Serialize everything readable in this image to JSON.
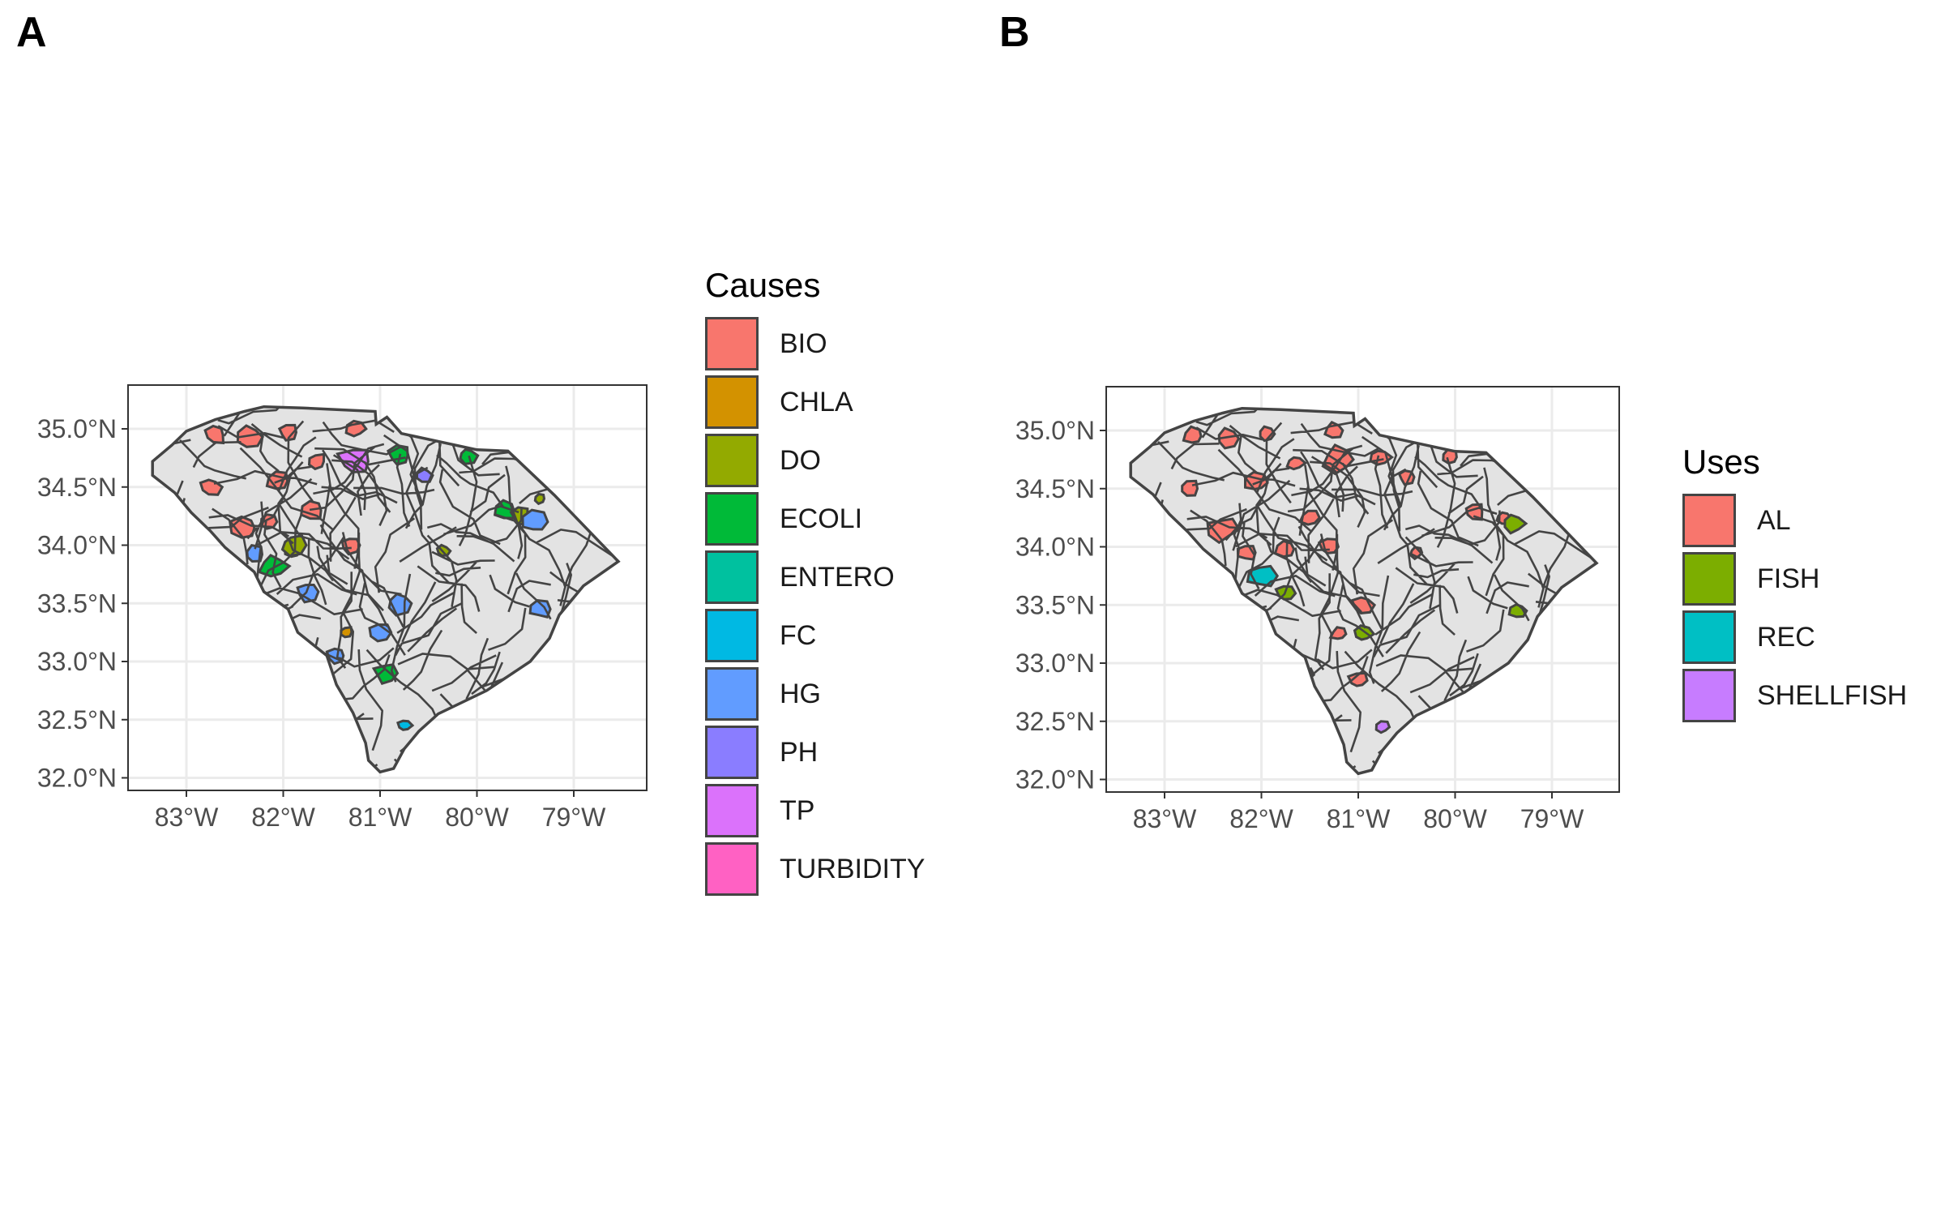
{
  "panels": [
    {
      "label": "A",
      "legend": {
        "title": "Causes",
        "items": [
          {
            "label": "BIO",
            "color": "#F8766D"
          },
          {
            "label": "CHLA",
            "color": "#D39200"
          },
          {
            "label": "DO",
            "color": "#93AA00"
          },
          {
            "label": "ECOLI",
            "color": "#00BA38"
          },
          {
            "label": "ENTERO",
            "color": "#00C19F"
          },
          {
            "label": "FC",
            "color": "#00B9E3"
          },
          {
            "label": "HG",
            "color": "#619CFF"
          },
          {
            "label": "PH",
            "color": "#8A7DFF"
          },
          {
            "label": "TP",
            "color": "#DB72FB"
          },
          {
            "label": "TURBIDITY",
            "color": "#FF61C3"
          }
        ]
      }
    },
    {
      "label": "B",
      "legend": {
        "title": "Uses",
        "items": [
          {
            "label": "AL",
            "color": "#F8766D"
          },
          {
            "label": "FISH",
            "color": "#7CAE00"
          },
          {
            "label": "REC",
            "color": "#00BFC4"
          },
          {
            "label": "SHELLFISH",
            "color": "#C77CFF"
          }
        ]
      }
    }
  ],
  "axes": {
    "y_ticks": [
      "35.0°N",
      "34.5°N",
      "34.0°N",
      "33.5°N",
      "33.0°N",
      "32.5°N",
      "32.0°N"
    ],
    "x_ticks": [
      "83°W",
      "82°W",
      "81°W",
      "80°W",
      "79°W"
    ]
  },
  "map_style": {
    "region_fill": "#e3e3e3",
    "border_color": "#444444",
    "grid_color": "#ebebeb"
  }
}
